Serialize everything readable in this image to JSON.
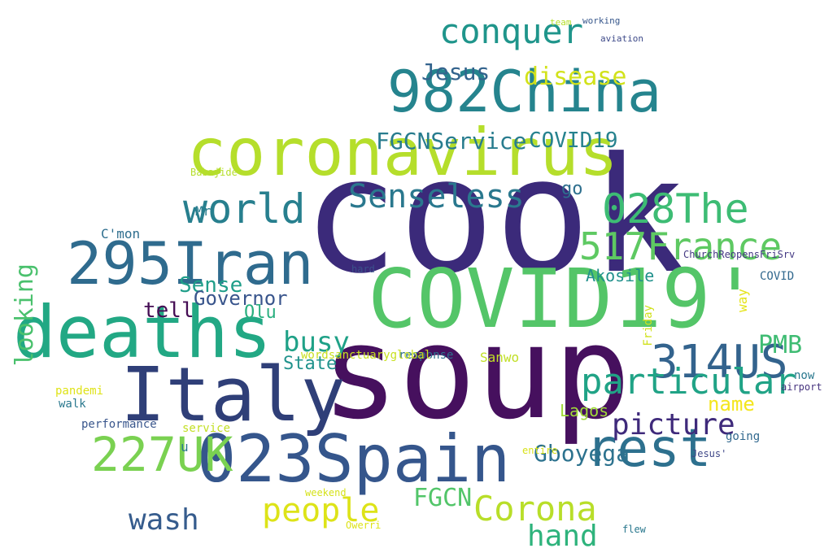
{
  "words": [
    {
      "text": "cook",
      "color": "#3b2a7a"
    },
    {
      "text": "soup",
      "color": "#46105e"
    },
    {
      "text": "COVID19'",
      "color": "#54c568"
    },
    {
      "text": "Italy",
      "color": "#2f3f78"
    },
    {
      "text": "deaths",
      "color": "#22a884"
    },
    {
      "text": "023Spain",
      "color": "#35568c"
    },
    {
      "text": "coronavirus",
      "color": "#b5de2b"
    },
    {
      "text": "982China",
      "color": "#25848e"
    },
    {
      "text": "295Iran",
      "color": "#2f6b8e"
    },
    {
      "text": "314US",
      "color": "#33638d"
    },
    {
      "text": "rest",
      "color": "#2d708e"
    },
    {
      "text": "world",
      "color": "#277f8e"
    },
    {
      "text": "517France",
      "color": "#5ec962"
    },
    {
      "text": "028The",
      "color": "#3dbc74"
    },
    {
      "text": "227UK",
      "color": "#7ad151"
    },
    {
      "text": "conquer",
      "color": "#1f958b"
    },
    {
      "text": "Senseless",
      "color": "#2a788e"
    },
    {
      "text": "particular",
      "color": "#20a386"
    },
    {
      "text": "picture",
      "color": "#3f2a7b"
    },
    {
      "text": "people",
      "color": "#dde318"
    },
    {
      "text": "Corona",
      "color": "#b8de29"
    },
    {
      "text": "hand",
      "color": "#2eb37c"
    },
    {
      "text": "wash",
      "color": "#365c8d"
    },
    {
      "text": "disease",
      "color": "#d2e21b"
    },
    {
      "text": "PMB",
      "color": "#3fbc73"
    },
    {
      "text": "busy",
      "color": "#1fa187"
    },
    {
      "text": "looking",
      "color": "#4ac16d"
    },
    {
      "text": "Jesus",
      "color": "#33638d"
    },
    {
      "text": "FGCNService",
      "color": "#287c8e"
    },
    {
      "text": "COVID19",
      "color": "#26828e"
    },
    {
      "text": "Sense",
      "color": "#1f9e89"
    },
    {
      "text": "Governor",
      "color": "#39558c"
    },
    {
      "text": "name",
      "color": "#f4e61e"
    },
    {
      "text": "Gboyega",
      "color": "#2c728e"
    },
    {
      "text": "FGCN",
      "color": "#52c569"
    },
    {
      "text": "tell",
      "color": "#450d54"
    },
    {
      "text": "Olu",
      "color": "#29af7f"
    },
    {
      "text": "State",
      "color": "#20928c"
    },
    {
      "text": "go",
      "color": "#2e6f8e"
    },
    {
      "text": "Akosile",
      "color": "#21918c"
    },
    {
      "text": "Lagos",
      "color": "#a0da39"
    },
    {
      "text": "Sanwo",
      "color": "#c0df25"
    },
    {
      "text": "pandemi",
      "color": "#dfe318"
    },
    {
      "text": "walk",
      "color": "#2a788e"
    },
    {
      "text": "performance",
      "color": "#39568c"
    },
    {
      "text": "response",
      "color": "#2d708e"
    },
    {
      "text": "going",
      "color": "#31688e"
    },
    {
      "text": "C'mon",
      "color": "#2e6e8e"
    },
    {
      "text": "Babajide",
      "color": "#b5de2b"
    },
    {
      "text": "service",
      "color": "#c2df23"
    },
    {
      "text": "Friday",
      "color": "#d0e11c"
    },
    {
      "text": "now",
      "color": "#2a788e"
    },
    {
      "text": "COVID",
      "color": "#31688e"
    },
    {
      "text": "wordsanctuaryglobal",
      "color": "#c8e020"
    },
    {
      "text": "Mr",
      "color": "#287c8e"
    },
    {
      "text": "way",
      "color": "#e5e419"
    },
    {
      "text": "u",
      "color": "#2a788e"
    },
    {
      "text": "ChurchReopensFriSrv",
      "color": "#443983"
    },
    {
      "text": "aviation",
      "color": "#3e4a89"
    },
    {
      "text": "airport",
      "color": "#46337e"
    },
    {
      "text": "entire",
      "color": "#d8e219"
    },
    {
      "text": "working",
      "color": "#38588c"
    },
    {
      "text": "team",
      "color": "#b5de2b"
    },
    {
      "text": "flew",
      "color": "#2a788e"
    },
    {
      "text": "Owerri",
      "color": "#dde318"
    },
    {
      "text": "weekend",
      "color": "#d5e21a"
    },
    {
      "text": "hard",
      "color": "#3b518b"
    },
    {
      "text": "Jesus'",
      "color": "#3f4788"
    }
  ]
}
